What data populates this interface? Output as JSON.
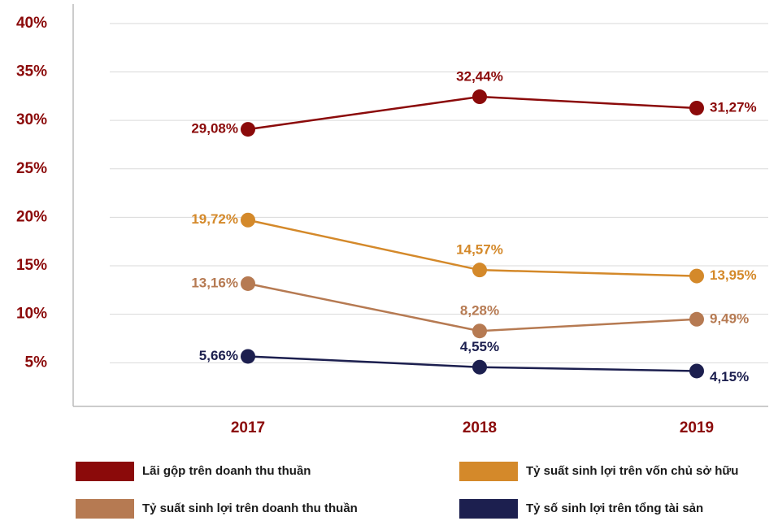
{
  "chart_data": {
    "type": "line",
    "categories": [
      "2017",
      "2018",
      "2019"
    ],
    "series": [
      {
        "name": "Lãi gộp trên doanh thu thuần",
        "color": "#8b0a0a",
        "values": [
          29.08,
          32.44,
          31.27
        ],
        "value_labels": [
          "29,08%",
          "32,44%",
          "31,27%"
        ]
      },
      {
        "name": "Tỷ suất sinh lợi trên vốn chủ sở hữu",
        "color": "#d4892a",
        "values": [
          19.72,
          14.57,
          13.95
        ],
        "value_labels": [
          "19,72%",
          "14,57%",
          "13,95%"
        ]
      },
      {
        "name": "Tỷ suất sinh lợi trên doanh thu thuần",
        "color": "#b67a52",
        "values": [
          13.16,
          8.28,
          9.49
        ],
        "value_labels": [
          "13,16%",
          "8,28%",
          "9,49%"
        ]
      },
      {
        "name": "Tỷ số sinh lợi trên tổng tài sản",
        "color": "#1c1f4f",
        "values": [
          5.66,
          4.55,
          4.15
        ],
        "value_labels": [
          "5,66%",
          "4,55%",
          "4,15%"
        ]
      }
    ],
    "ylim": [
      0.5,
      42
    ],
    "yticks": [
      {
        "value": 5,
        "label": "5%"
      },
      {
        "value": 10,
        "label": "10%"
      },
      {
        "value": 15,
        "label": "15%"
      },
      {
        "value": 20,
        "label": "20%"
      },
      {
        "value": 25,
        "label": "25%"
      },
      {
        "value": 30,
        "label": "30%"
      },
      {
        "value": 35,
        "label": "35%"
      },
      {
        "value": 40,
        "label": "40%"
      }
    ],
    "grid": true
  }
}
